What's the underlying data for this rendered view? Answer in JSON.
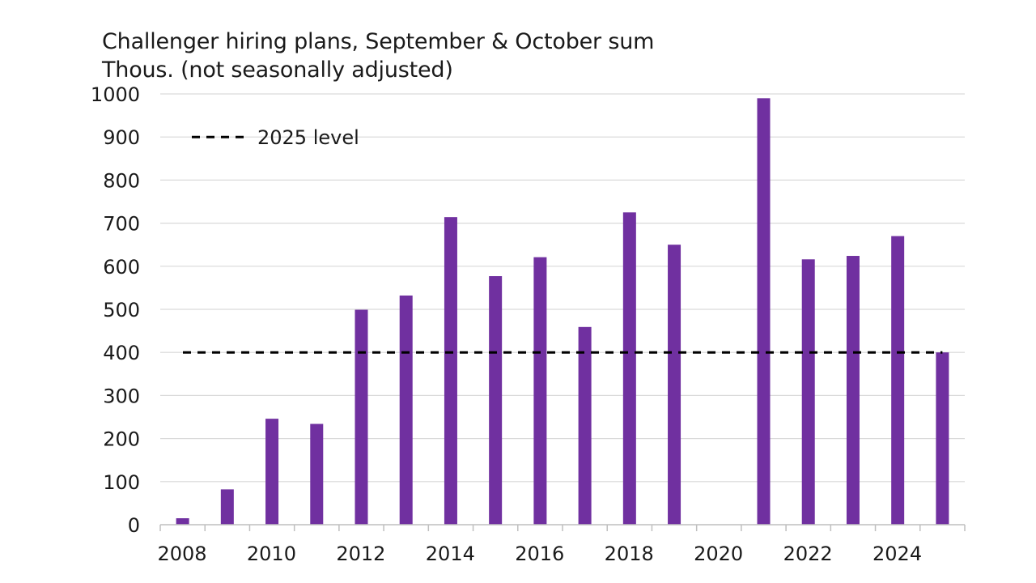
{
  "chart_data": {
    "type": "bar",
    "title": "Challenger hiring plans, September & October sum",
    "subtitle": "Thous. (not seasonally adjusted)",
    "xlabel": "",
    "ylabel": "",
    "categories": [
      "2008",
      "2009",
      "2010",
      "2011",
      "2012",
      "2013",
      "2014",
      "2015",
      "2016",
      "2017",
      "2018",
      "2019",
      "2020",
      "2021",
      "2022",
      "2023",
      "2024",
      "2025"
    ],
    "values": [
      15,
      82,
      246,
      234,
      499,
      532,
      714,
      577,
      621,
      459,
      725,
      650,
      0,
      990,
      616,
      624,
      670,
      400
    ],
    "x_tick_labels": [
      "2008",
      "2010",
      "2012",
      "2014",
      "2016",
      "2018",
      "2020",
      "2022",
      "2024"
    ],
    "ylim": [
      0,
      1000
    ],
    "y_ticks": [
      0,
      100,
      200,
      300,
      400,
      500,
      600,
      700,
      800,
      900,
      1000
    ],
    "grid": true,
    "reference_line": {
      "label": "2025 level",
      "value": 400,
      "style": "dashed"
    },
    "legend_position": "top-left",
    "colors": {
      "bar": "#7030a0",
      "grid": "#d9d9d9",
      "axis": "#bfbfbf",
      "reference": "#000000"
    }
  }
}
